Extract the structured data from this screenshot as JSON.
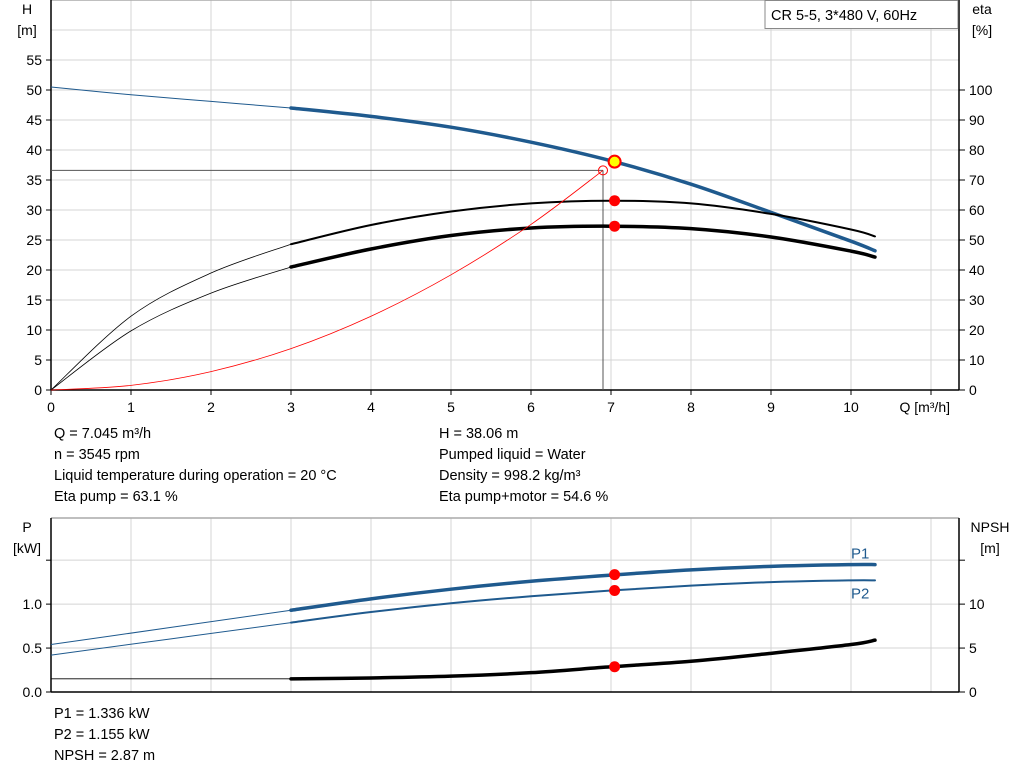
{
  "chart_data": [
    {
      "type": "line",
      "title": "CR 5-5, 3*480 V, 60Hz",
      "xlabel": "Q [m³/h]",
      "ylabel_left": [
        "H",
        "[m]"
      ],
      "ylabel_right": [
        "eta",
        "[%]"
      ],
      "xlim": [
        0,
        11.35
      ],
      "ylim_left": [
        0,
        65
      ],
      "ylim_right": [
        0,
        130
      ],
      "x_ticks": [
        "0",
        "1",
        "2",
        "3",
        "4",
        "5",
        "6",
        "7",
        "8",
        "9",
        "10"
      ],
      "y_ticks_left": [
        "0",
        "5",
        "10",
        "15",
        "20",
        "25",
        "30",
        "35",
        "40",
        "45",
        "50",
        "55"
      ],
      "y_ticks_right": [
        "0",
        "10",
        "20",
        "30",
        "40",
        "50",
        "60",
        "70",
        "80",
        "90",
        "100"
      ],
      "grid": true,
      "series": [
        {
          "key": "head",
          "axis": "left",
          "color": "#1f5a8e",
          "x": [
            0,
            1,
            2,
            3,
            4,
            5,
            6,
            7,
            8,
            9,
            10,
            10.3
          ],
          "y": [
            50.5,
            49.2,
            48.1,
            47.0,
            45.6,
            43.8,
            41.3,
            38.2,
            34.3,
            29.6,
            24.8,
            23.2
          ],
          "thin_until": 3
        },
        {
          "key": "eta_pump",
          "axis": "right",
          "color": "#000000",
          "x": [
            0,
            1,
            2,
            3,
            4,
            5,
            6,
            7,
            8,
            9,
            10,
            10.3
          ],
          "y": [
            0,
            24.6,
            39,
            48.6,
            55,
            59.5,
            62.2,
            63.1,
            62.2,
            58.7,
            53.5,
            51.2
          ],
          "thin_until": 3
        },
        {
          "key": "eta_pump_motor",
          "axis": "right",
          "color": "#000000",
          "x": [
            0,
            1,
            2,
            3,
            4,
            5,
            6,
            7,
            8,
            9,
            10,
            10.3
          ],
          "y": [
            0,
            19.7,
            32.3,
            41,
            47,
            51.5,
            54,
            54.6,
            53.8,
            51,
            46.3,
            44.3
          ],
          "thin_until": 3,
          "bold": true
        },
        {
          "key": "system_curve",
          "axis": "left",
          "color": "#ff0000",
          "x": [
            0,
            1,
            2,
            3,
            4,
            5,
            6,
            6.9
          ],
          "y": [
            0,
            0.77,
            3.07,
            6.9,
            12.3,
            19.2,
            27.6,
            36.6
          ]
        }
      ],
      "duty_point": {
        "q": 7.045,
        "h": 38.06,
        "eta_pump": 63.1,
        "eta_pump_motor": 54.6,
        "color": "#ffff00"
      },
      "requested_point": {
        "q": 6.9,
        "h": 36.6
      }
    },
    {
      "type": "line",
      "xlim": [
        0,
        11.35
      ],
      "ylabel_left": [
        "P",
        "[kW]"
      ],
      "ylabel_right": [
        "NPSH",
        "[m]"
      ],
      "ylim_left": [
        0,
        1.98
      ],
      "ylim_right": [
        0,
        19.8
      ],
      "y_ticks_left": [
        "0.0",
        "0.5",
        "1.0"
      ],
      "y_ticks_right": [
        "0",
        "5",
        "10"
      ],
      "grid": true,
      "series": [
        {
          "key": "p1",
          "name": "P1",
          "axis": "left",
          "color": "#1f5a8e",
          "x": [
            0,
            3,
            4,
            5,
            6,
            7,
            8,
            9,
            10,
            10.3
          ],
          "y": [
            0.54,
            0.93,
            1.06,
            1.17,
            1.26,
            1.33,
            1.39,
            1.43,
            1.45,
            1.45
          ],
          "thin_until": 3,
          "bold": true
        },
        {
          "key": "p2",
          "name": "P2",
          "axis": "left",
          "color": "#1f5a8e",
          "x": [
            0,
            3,
            4,
            5,
            6,
            7,
            8,
            9,
            10,
            10.3
          ],
          "y": [
            0.42,
            0.79,
            0.91,
            1.01,
            1.09,
            1.155,
            1.21,
            1.25,
            1.27,
            1.27
          ],
          "thin_until": 3
        },
        {
          "key": "npsh",
          "axis": "right",
          "color": "#000000",
          "x": [
            0,
            3,
            4,
            5,
            6,
            7,
            8,
            9,
            10,
            10.3
          ],
          "y": [
            1.5,
            1.5,
            1.6,
            1.8,
            2.2,
            2.87,
            3.5,
            4.4,
            5.4,
            5.9
          ],
          "thin_until": 3,
          "bold": true
        }
      ],
      "points": [
        {
          "series": "p1",
          "q": 7.045,
          "y": 1.336
        },
        {
          "series": "p2",
          "q": 7.045,
          "y": 1.155
        },
        {
          "series": "npsh",
          "q": 7.045,
          "y": 2.87
        }
      ]
    }
  ],
  "info_top_left": [
    "Q = 7.045 m³/h",
    "n = 3545 rpm",
    "Liquid temperature during operation = 20 °C",
    "Eta pump = 63.1 %"
  ],
  "info_top_right": [
    "H = 38.06 m",
    "Pumped liquid = Water",
    "Density = 998.2 kg/m³",
    "Eta pump+motor = 54.6 %"
  ],
  "info_bottom": [
    "P1 = 1.336 kW",
    "P2 = 1.155 kW",
    "NPSH = 2.87 m"
  ]
}
